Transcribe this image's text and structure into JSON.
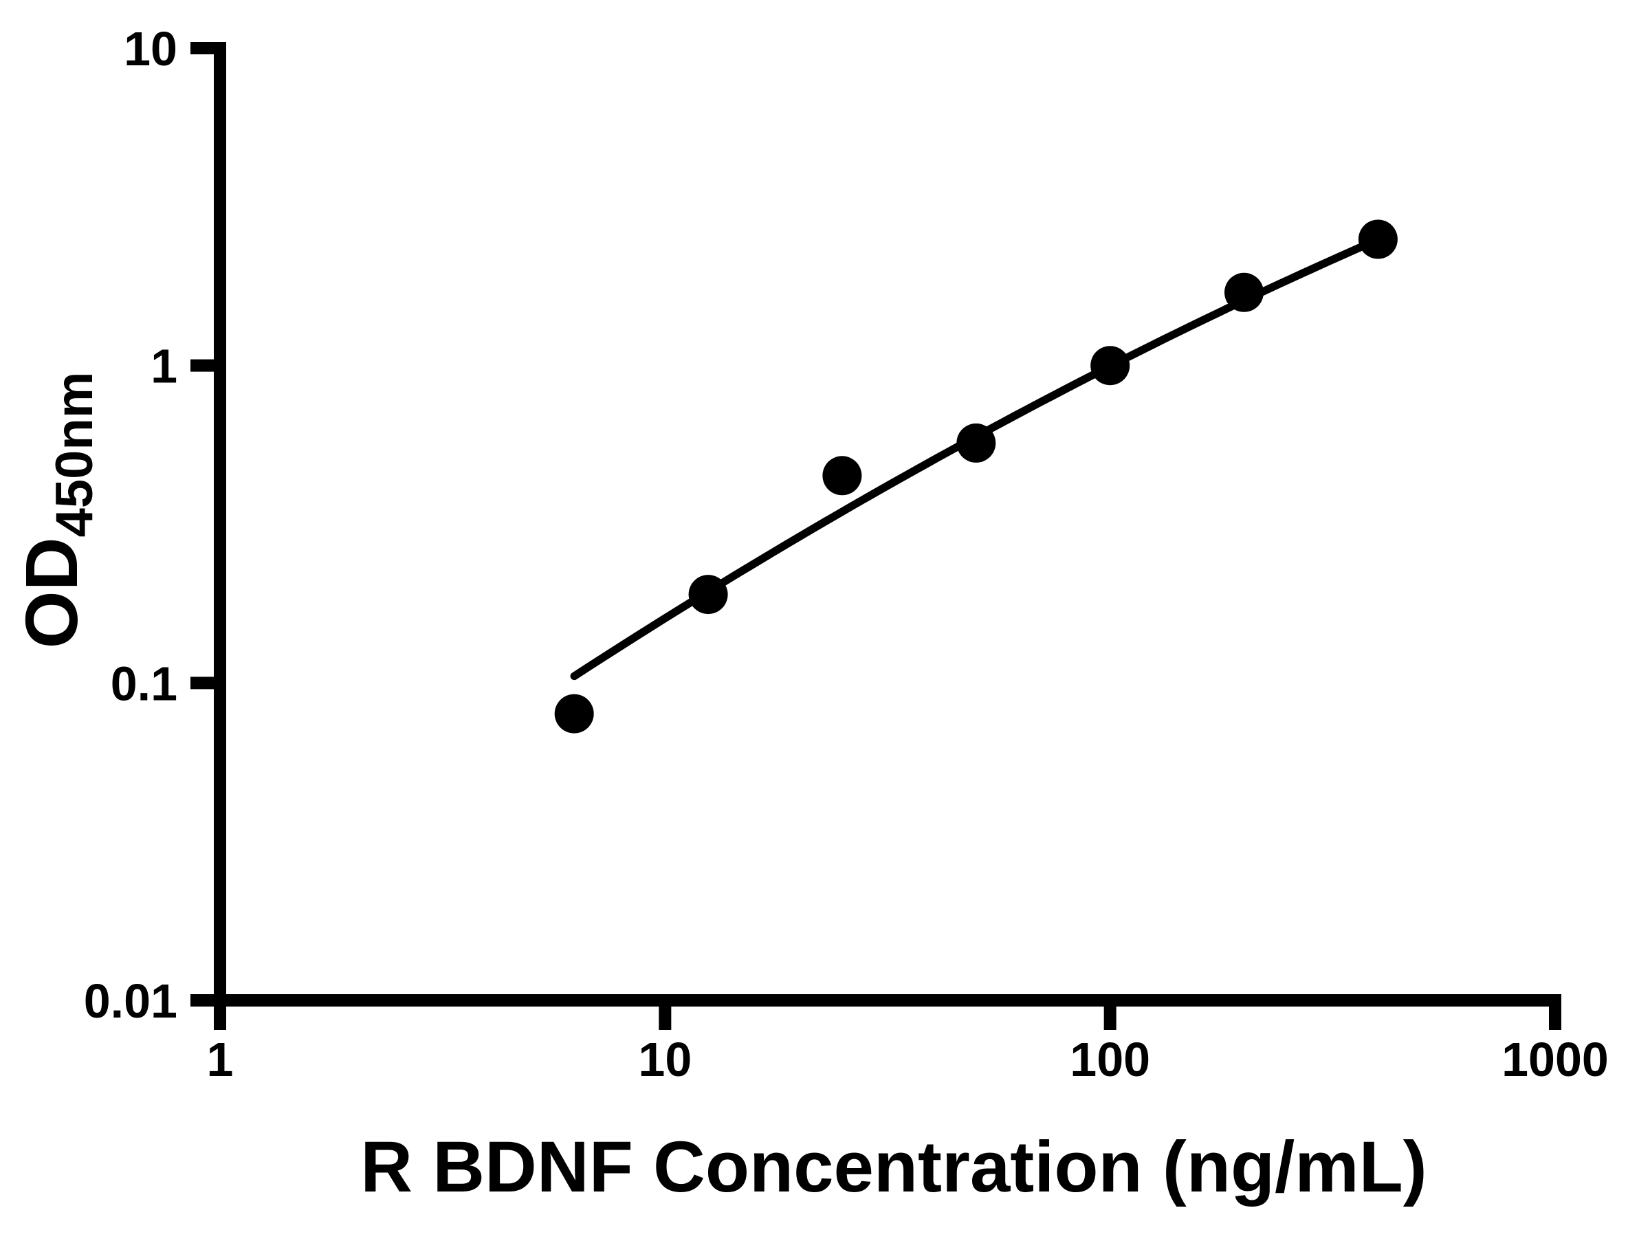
{
  "figure": {
    "background_color": "#ffffff",
    "foreground_color": "#000000"
  },
  "chart_data": {
    "type": "scatter",
    "title": "",
    "xlabel": "R BDNF Concentration (ng/mL)",
    "ylabel_main": "OD",
    "ylabel_subscript": "450nm",
    "x_scale": "log",
    "y_scale": "log",
    "xlim": [
      1,
      1000
    ],
    "ylim": [
      0.01,
      10
    ],
    "x_tick_values": [
      1,
      10,
      100,
      1000
    ],
    "x_tick_labels": [
      "1",
      "10",
      "100",
      "1000"
    ],
    "y_tick_values": [
      10,
      1,
      0.1,
      0.01
    ],
    "y_tick_labels": [
      "10",
      "1",
      "0.1",
      "0.01"
    ],
    "grid": false,
    "legend_position": "none",
    "marker_color": "#000000",
    "line_color": "#000000",
    "series": [
      {
        "name": "standard-data-points",
        "type": "scatter",
        "marker": "filled-circle",
        "x": [
          6.25,
          12.5,
          25,
          50,
          100,
          200,
          400
        ],
        "y": [
          0.08,
          0.19,
          0.45,
          0.57,
          1.0,
          1.7,
          2.5
        ]
      },
      {
        "name": "fitted-standard-curve",
        "type": "line",
        "fit_model": "quadratic-in-loglog",
        "coefficients": {
          "a": -0.082,
          "b": 1.0403,
          "c": -1.7546
        },
        "log10x_range": [
          0.796,
          2.602
        ]
      }
    ]
  }
}
